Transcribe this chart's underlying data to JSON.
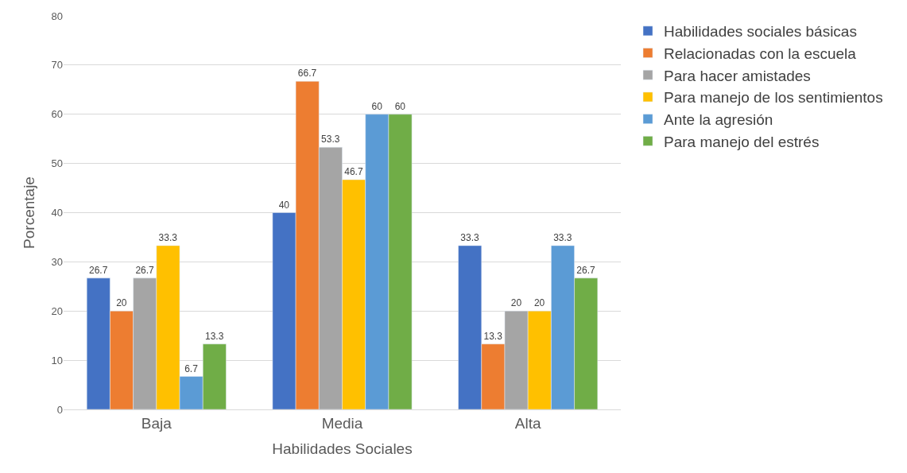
{
  "chart_data": {
    "type": "bar",
    "xlabel": "Habilidades Sociales",
    "ylabel": "Porcentaje",
    "categories": [
      "Baja",
      "Media",
      "Alta"
    ],
    "series": [
      {
        "name": "Habilidades sociales básicas",
        "color": "#4472c4",
        "values": [
          26.7,
          40,
          33.3
        ]
      },
      {
        "name": "Relacionadas con la escuela",
        "color": "#ed7d31",
        "values": [
          20,
          66.7,
          13.3
        ]
      },
      {
        "name": "Para hacer amistades",
        "color": "#a5a5a5",
        "values": [
          26.7,
          53.3,
          20
        ]
      },
      {
        "name": "Para manejo de los sentimientos",
        "color": "#ffc000",
        "values": [
          33.3,
          46.7,
          20
        ]
      },
      {
        "name": "Ante la agresión",
        "color": "#5b9bd5",
        "values": [
          6.7,
          60,
          33.3
        ]
      },
      {
        "name": "Para manejo del estrés",
        "color": "#70ad47",
        "values": [
          13.3,
          60,
          26.7
        ]
      }
    ],
    "ylim": [
      0,
      80
    ],
    "yticks": [
      0,
      10,
      20,
      30,
      40,
      50,
      60,
      70,
      80
    ],
    "grid": "y",
    "legend": "top right",
    "data_labels": true
  }
}
